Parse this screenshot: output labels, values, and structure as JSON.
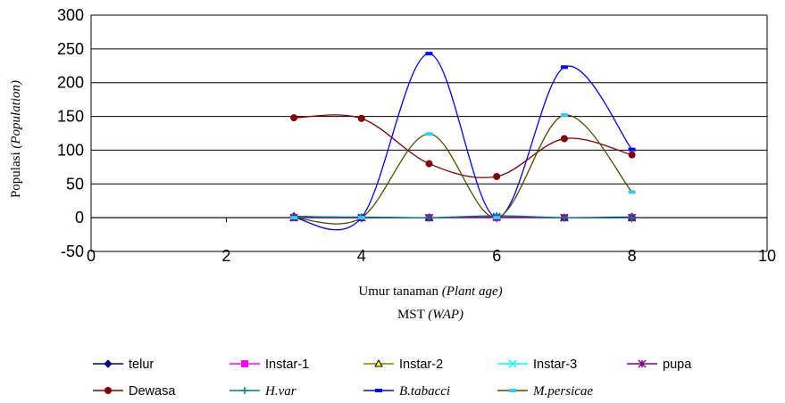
{
  "chart_data": {
    "type": "line",
    "xlabel": "Umur tanaman",
    "xlabel_italic": "(Plant age)",
    "xlabel_line2": "MST",
    "xlabel_line2_italic": "(WAP)",
    "ylabel": "Populasi",
    "ylabel_italic": "(Population)",
    "xlim": [
      0,
      10
    ],
    "ylim": [
      -50,
      300
    ],
    "x_ticks": [
      0,
      2,
      4,
      6,
      8,
      10
    ],
    "y_ticks": [
      300,
      250,
      200,
      150,
      100,
      50,
      0,
      -50
    ],
    "y_grid": true,
    "x_grid": false,
    "legend_position": "bottom",
    "series": [
      {
        "name": "telur",
        "italic": false,
        "color": "#000080",
        "marker": "diamond",
        "x": [
          3,
          4,
          5,
          6,
          7,
          8
        ],
        "y": [
          2,
          0,
          0,
          1,
          0,
          1
        ]
      },
      {
        "name": "Instar-1",
        "italic": false,
        "color": "#FF00FF",
        "marker": "square",
        "x": [
          3,
          4,
          5,
          6,
          7,
          8
        ],
        "y": [
          0,
          0,
          0,
          0,
          0,
          0
        ]
      },
      {
        "name": "Instar-2",
        "italic": false,
        "color": "#808000",
        "marker": "triangle",
        "x": [
          3,
          4,
          5,
          6,
          7,
          8
        ],
        "y": [
          0,
          0,
          0,
          1,
          0,
          0
        ]
      },
      {
        "name": "Instar-3",
        "italic": false,
        "color": "#00FFFF",
        "marker": "x",
        "x": [
          3,
          4,
          5,
          6,
          7,
          8
        ],
        "y": [
          0,
          1,
          0,
          2,
          0,
          0
        ]
      },
      {
        "name": "pupa",
        "italic": false,
        "color": "#800080",
        "marker": "star",
        "x": [
          3,
          4,
          5,
          6,
          7,
          8
        ],
        "y": [
          0,
          0,
          0,
          1,
          0,
          0
        ]
      },
      {
        "name": "Dewasa",
        "italic": false,
        "color": "#800000",
        "marker": "circle",
        "x": [
          3,
          4,
          5,
          6,
          7,
          8
        ],
        "y": [
          148,
          147,
          80,
          61,
          117,
          93
        ]
      },
      {
        "name": "H.var",
        "italic": true,
        "color": "#008080",
        "marker": "plus",
        "x": [
          3,
          4,
          5,
          6,
          7,
          8
        ],
        "y": [
          1,
          1,
          0,
          3,
          0,
          0
        ]
      },
      {
        "name": "B.tabacci",
        "italic": true,
        "color": "#0000FF",
        "marker": "dash",
        "x": [
          3,
          4,
          5,
          6,
          7,
          8
        ],
        "y": [
          0,
          0,
          243,
          0,
          223,
          101
        ]
      },
      {
        "name": "M.persicae",
        "italic": true,
        "color": "#4D4D00",
        "marker": "dash-cyan",
        "x": [
          3,
          4,
          5,
          6,
          7,
          8
        ],
        "y": [
          0,
          0,
          124,
          0,
          152,
          38
        ]
      }
    ]
  }
}
